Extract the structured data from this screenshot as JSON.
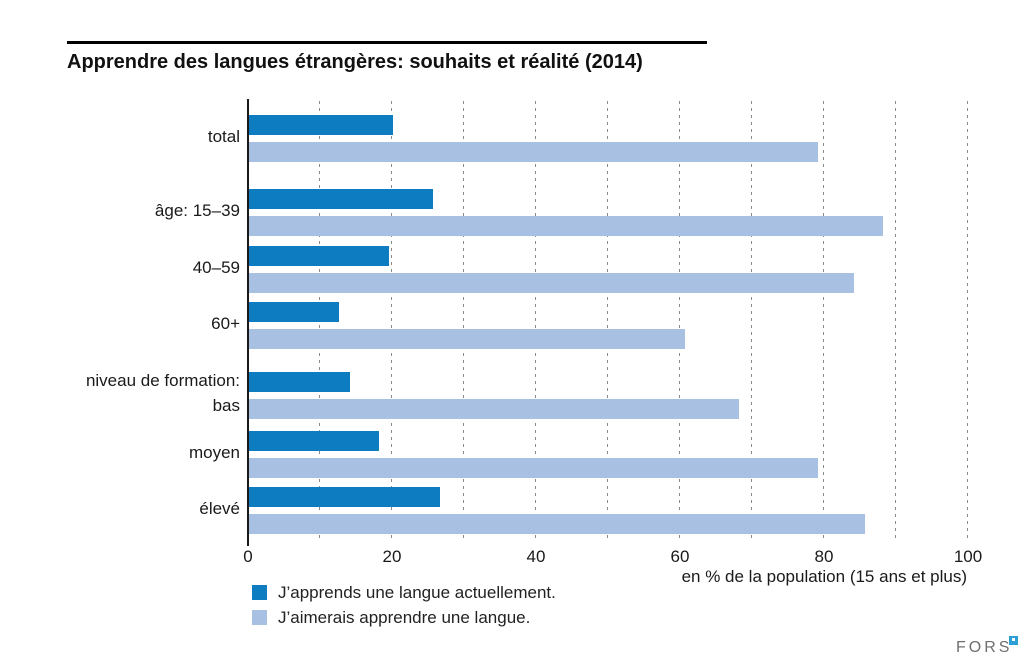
{
  "title": "Apprendre des langues étrangères: souhaits et réalité (2014)",
  "chart_data": {
    "type": "bar",
    "orientation": "horizontal",
    "categories": [
      "total",
      "âge: 15–39",
      "40–59",
      "60+",
      "niveau de formation:\nbas",
      "moyen",
      "élevé"
    ],
    "series": [
      {
        "name": "J’apprends une langue actuellement.",
        "color": "#0e7cc1",
        "values": [
          20,
          25.5,
          19.5,
          12.5,
          14,
          18,
          26.5
        ]
      },
      {
        "name": "J’aimerais apprendre une langue.",
        "color": "#a8c0e2",
        "values": [
          79,
          88,
          84,
          60.5,
          68,
          79,
          85.5
        ]
      }
    ],
    "xlabel": "en % de la population (15 ans et plus)",
    "xlim": [
      0,
      100
    ],
    "xticks": [
      0,
      20,
      40,
      60,
      80,
      100
    ],
    "gridline_step": 10,
    "grid": true,
    "legend_position": "bottom-left"
  },
  "branding": {
    "logo_text": "FORS"
  }
}
